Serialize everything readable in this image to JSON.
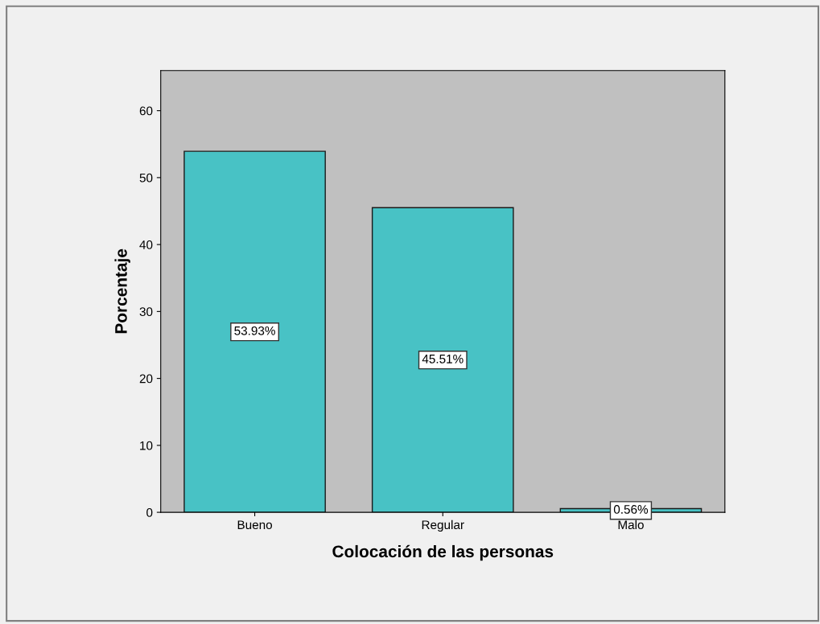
{
  "chart_data": {
    "type": "bar",
    "xlabel": "Colocación de las personas",
    "ylabel": "Porcentaje",
    "categories": [
      "Bueno",
      "Regular",
      "Malo"
    ],
    "values": [
      53.93,
      45.51,
      0.56
    ],
    "value_labels": [
      "53.93%",
      "45.51%",
      "0.56%"
    ],
    "color": "#48c2c5",
    "ylim": [
      0,
      66
    ],
    "yticks": [
      0,
      10,
      20,
      30,
      40,
      50,
      60
    ],
    "grid": false
  }
}
